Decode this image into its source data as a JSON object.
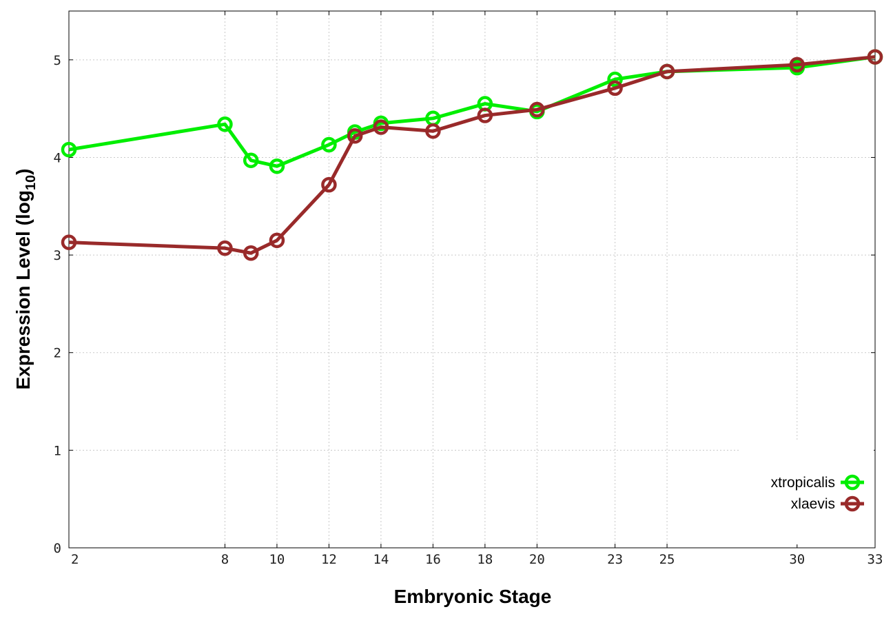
{
  "chart_data": {
    "type": "line",
    "title": "",
    "xlabel": "Embryonic Stage",
    "ylabel_main": "Expression Level (log",
    "ylabel_sub": "10",
    "ylabel_close": ")",
    "x": [
      2,
      8,
      9,
      10,
      12,
      13,
      14,
      16,
      18,
      20,
      23,
      25,
      30,
      33
    ],
    "x_ticks": [
      2,
      8,
      10,
      12,
      14,
      16,
      18,
      20,
      23,
      25,
      30,
      33
    ],
    "x_tick_labels": [
      "2",
      "8",
      "10",
      "12",
      "14",
      "16",
      "18",
      "20",
      "23",
      "25",
      "30",
      "33"
    ],
    "xlim": [
      2,
      33
    ],
    "y_ticks": [
      0,
      1,
      2,
      3,
      4,
      5
    ],
    "y_tick_labels": [
      "0",
      "1",
      "2",
      "3",
      "4",
      "5"
    ],
    "ylim": [
      0,
      5.5
    ],
    "grid": true,
    "legend_position": "bottom-right",
    "series": [
      {
        "name": "xtropicalis",
        "color": "#00ee00",
        "marker": "open-circle",
        "values": [
          4.08,
          4.34,
          3.97,
          3.91,
          4.13,
          4.26,
          4.35,
          4.4,
          4.55,
          4.47,
          4.8,
          4.88,
          4.92,
          5.03
        ]
      },
      {
        "name": "xlaevis",
        "color": "#992a2a",
        "marker": "open-circle",
        "values": [
          3.13,
          3.07,
          3.02,
          3.15,
          3.72,
          4.22,
          4.31,
          4.27,
          4.43,
          4.49,
          4.71,
          4.88,
          4.95,
          5.03
        ]
      }
    ]
  }
}
